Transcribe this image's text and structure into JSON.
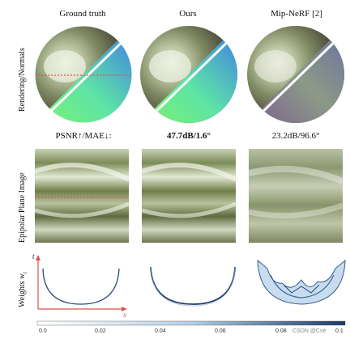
{
  "columns": {
    "ground_truth": "Ground truth",
    "ours": "Ours",
    "mipnerf": "Mip-NeRF [2]"
  },
  "rows": {
    "rendering": "Rendering/Normals",
    "epipolar": "Epipolar Plane Image",
    "weights": "Weights"
  },
  "weights_symbol": "w",
  "weights_subscript": "i",
  "metrics": {
    "label": "PSNR↑/MAE↓:",
    "ours": "47.7dB/1.6°",
    "mipnerf": "23.2dB/96.6°"
  },
  "axis": {
    "t": "t",
    "x": "x"
  },
  "colorbar": {
    "ticks": [
      "0.0",
      "0.02",
      "0.04",
      "0.06",
      "0.08"
    ],
    "last_tick": "0.1"
  },
  "watermark": "CSDN @Csé"
}
